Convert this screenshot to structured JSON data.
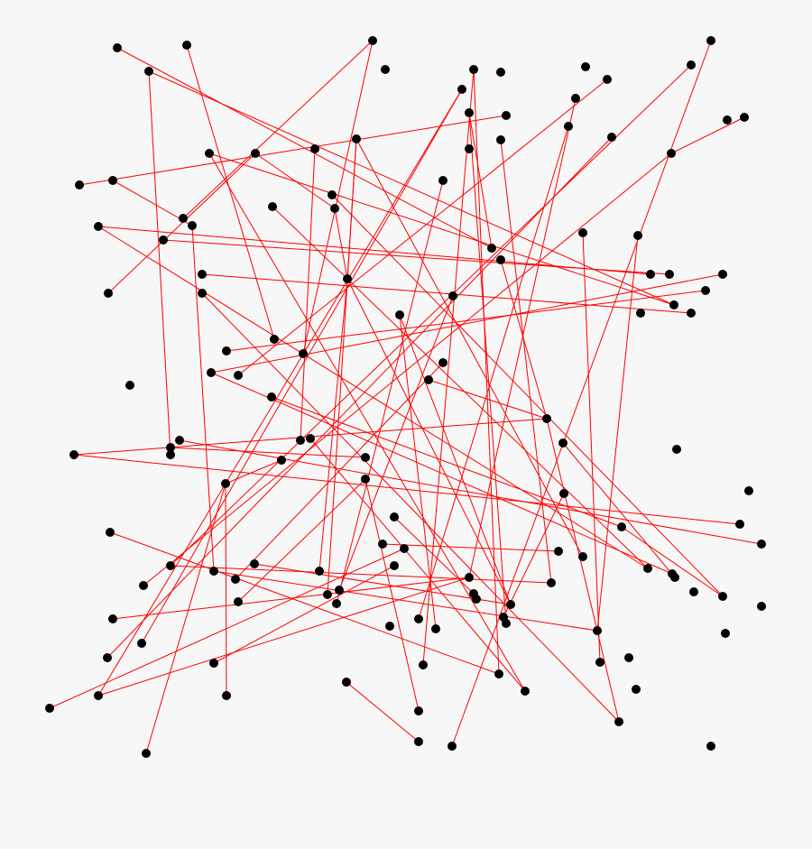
{
  "colors": {
    "background": "#f7f7f7",
    "edge": "#ff0000",
    "node": "#000000"
  },
  "graph": {
    "node_count": 135,
    "edges": [
      [
        0,
        36
      ],
      [
        3,
        49
      ],
      [
        1,
        53
      ],
      [
        2,
        55
      ],
      [
        2,
        32
      ],
      [
        5,
        122
      ],
      [
        5,
        120
      ],
      [
        11,
        126
      ],
      [
        11,
        116
      ],
      [
        14,
        26
      ],
      [
        8,
        58
      ],
      [
        10,
        132
      ],
      [
        9,
        86
      ],
      [
        20,
        21
      ],
      [
        21,
        97
      ],
      [
        39,
        114
      ],
      [
        18,
        117
      ],
      [
        22,
        49
      ],
      [
        22,
        125
      ],
      [
        25,
        44
      ],
      [
        25,
        99
      ],
      [
        25,
        85
      ],
      [
        29,
        103
      ],
      [
        34,
        41
      ],
      [
        34,
        91
      ],
      [
        46,
        23
      ],
      [
        45,
        130
      ],
      [
        67,
        62
      ],
      [
        67,
        79
      ],
      [
        64,
        81
      ],
      [
        65,
        71
      ],
      [
        80,
        122
      ],
      [
        108,
        95
      ],
      [
        128,
        83
      ],
      [
        134,
        74
      ],
      [
        123,
        131
      ],
      [
        43,
        57
      ],
      [
        48,
        54
      ],
      [
        31,
        44
      ],
      [
        44,
        89
      ],
      [
        44,
        106
      ],
      [
        13,
        111
      ],
      [
        13,
        36
      ],
      [
        38,
        121
      ],
      [
        62,
        130
      ],
      [
        62,
        59
      ],
      [
        27,
        33
      ],
      [
        33,
        87
      ],
      [
        35,
        42
      ],
      [
        40,
        50
      ],
      [
        52,
        106
      ],
      [
        52,
        113
      ],
      [
        56,
        94
      ],
      [
        28,
        104
      ],
      [
        30,
        91
      ],
      [
        47,
        98
      ],
      [
        69,
        125
      ],
      [
        72,
        74
      ],
      [
        73,
        129
      ],
      [
        73,
        105
      ],
      [
        74,
        127
      ],
      [
        75,
        110
      ],
      [
        77,
        100
      ],
      [
        78,
        103
      ],
      [
        82,
        84
      ],
      [
        86,
        96
      ],
      [
        87,
        114
      ],
      [
        88,
        106
      ],
      [
        90,
        119
      ],
      [
        95,
        126
      ],
      [
        12,
        95
      ],
      [
        15,
        109
      ],
      [
        16,
        96
      ],
      [
        63,
        93
      ],
      [
        37,
        62
      ],
      [
        61,
        78
      ],
      [
        68,
        24
      ],
      [
        57,
        92
      ],
      [
        23,
        31
      ],
      [
        3,
        66
      ]
    ]
  }
}
